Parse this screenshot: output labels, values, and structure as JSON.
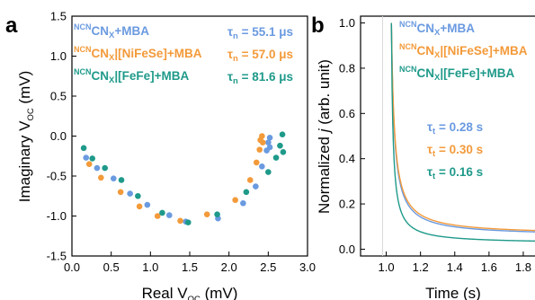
{
  "chart_data": [
    {
      "type": "scatter",
      "panel": "a",
      "xlabel_main": "Real V",
      "xlabel_sub": "OC",
      "xlabel_unit": " (mV)",
      "ylabel_main": "Imaginary V",
      "ylabel_sub": "OC",
      "ylabel_unit": " (mV)",
      "xlim": [
        0.0,
        3.0
      ],
      "ylim": [
        -1.5,
        1.5
      ],
      "xticks": [
        "0.0",
        "0.5",
        "1.0",
        "1.5",
        "2.0",
        "2.5",
        "3.0"
      ],
      "yticks": [
        "-1.5",
        "-1.0",
        "-0.5",
        "0.0",
        "0.5",
        "1.0",
        "1.5"
      ],
      "legend_position": "top",
      "series": [
        {
          "sup": "NCN",
          "name_main": "CN",
          "name_sub": "X",
          "name_rest": "+MBA",
          "tau_sym": "τ",
          "tau_sub": "n",
          "tau_value": " = 55.1 μs",
          "color": "#6a9ae0",
          "x": [
            0.18,
            0.32,
            0.53,
            0.74,
            0.96,
            1.24,
            1.45,
            1.86,
            2.18,
            2.34,
            2.42,
            2.48,
            2.5,
            2.52,
            2.52
          ],
          "y": [
            -0.27,
            -0.4,
            -0.53,
            -0.72,
            -0.86,
            -0.99,
            -1.07,
            -1.03,
            -0.84,
            -0.63,
            -0.38,
            -0.18,
            -0.08,
            -0.02,
            -0.14
          ]
        },
        {
          "sup": "NCN",
          "name_main": "CN",
          "name_sub": "X",
          "name_rest": "|[NiFeSe]+MBA",
          "tau_sym": "τ",
          "tau_sub": "n",
          "tau_value": " = 57.0 μs",
          "color": "#f39a3a",
          "x": [
            0.22,
            0.37,
            0.62,
            0.86,
            1.09,
            1.38,
            1.72,
            2.08,
            2.27,
            2.35,
            2.39,
            2.4,
            2.42,
            2.43
          ],
          "y": [
            -0.35,
            -0.52,
            -0.7,
            -0.88,
            -1.0,
            -1.06,
            -0.98,
            -0.8,
            -0.55,
            -0.33,
            -0.17,
            -0.05,
            0.0,
            -0.08
          ]
        },
        {
          "sup": "NCN",
          "name_main": "CN",
          "name_sub": "X",
          "name_rest": "|[FeFe]+MBA",
          "tau_sym": "τ",
          "tau_sub": "n",
          "tau_value": " = 81.6 μs",
          "color": "#1f9a8a",
          "x": [
            0.15,
            0.26,
            0.42,
            0.63,
            0.84,
            1.15,
            1.48,
            1.85,
            2.22,
            2.5,
            2.6,
            2.65,
            2.68,
            2.69
          ],
          "y": [
            -0.15,
            -0.28,
            -0.4,
            -0.55,
            -0.75,
            -0.96,
            -1.08,
            -0.98,
            -0.7,
            -0.45,
            -0.27,
            -0.12,
            0.02,
            -0.2
          ]
        }
      ]
    },
    {
      "type": "line",
      "panel": "b",
      "xlabel": "Time (s)",
      "ylabel_pre": "Normalized ",
      "ylabel_italic": "j",
      "ylabel_post": " (arb. unit)",
      "xlim": [
        0.85,
        1.9
      ],
      "ylim": [
        -0.03,
        1.03
      ],
      "xticks": [
        "1.0",
        "1.2",
        "1.4",
        "1.6",
        "1.8"
      ],
      "yticks": [
        "0.0",
        "0.2",
        "0.4",
        "0.6",
        "0.8",
        "1.0"
      ],
      "legend_position": "top-right",
      "series": [
        {
          "sup": "NCN",
          "name_main": "CN",
          "name_sub": "X",
          "name_rest": "+MBA",
          "tau_sym": "τ",
          "tau_sub": "t",
          "tau_value": " = 0.28 s",
          "color": "#6a9ae0",
          "t0": 1.03,
          "tau": 0.28,
          "plateau": 0.058
        },
        {
          "sup": "NCN",
          "name_main": "CN",
          "name_sub": "X",
          "name_rest": "|[NiFeSe]+MBA",
          "tau_sym": "τ",
          "tau_sub": "t",
          "tau_value": " = 0.30 s",
          "color": "#f39a3a",
          "t0": 1.03,
          "tau": 0.3,
          "plateau": 0.063
        },
        {
          "sup": "NCN",
          "name_main": "CN",
          "name_sub": "X",
          "name_rest": "|[FeFe]+MBA",
          "tau_sym": "τ",
          "tau_sub": "t",
          "tau_value": " = 0.16 s",
          "color": "#1f9a8a",
          "t0": 1.03,
          "tau": 0.16,
          "plateau": 0.025
        }
      ]
    }
  ]
}
